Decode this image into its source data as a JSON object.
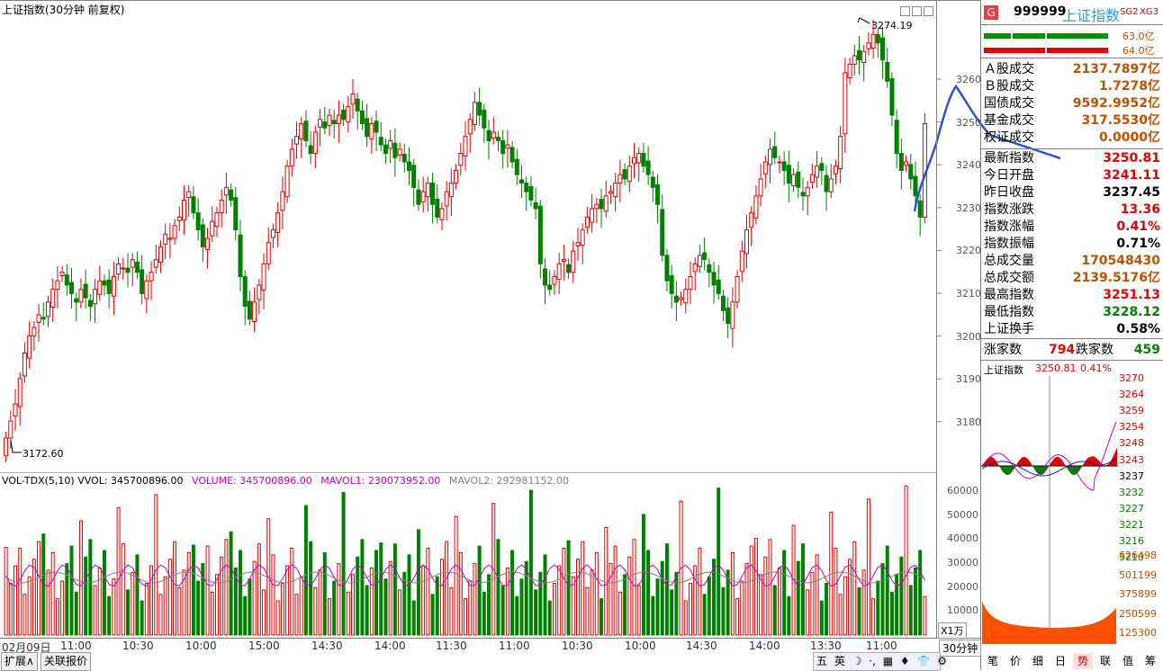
{
  "chart_title": "上证指数(30分钟 前复权)",
  "price_axis": [
    "3260",
    "3250",
    "3240",
    "3230",
    "3220",
    "3210",
    "3200",
    "3190",
    "3180"
  ],
  "high_label": "3274.19",
  "low_label": "3172.60",
  "vol_header": {
    "name": "VOL-TDX(5,10)",
    "vvol": "VVOL: 345700896.00",
    "volume": "VOLUME: 345700896.00",
    "mavol1": "MAVOL1: 230073952.00",
    "mavol2": "MAVOL2: 292981152.00"
  },
  "vol_axis": [
    "60000",
    "50000",
    "40000",
    "30000",
    "20000",
    "10000"
  ],
  "vol_unit": "X1万",
  "x_labels": [
    "02月09日",
    "11:00",
    "10:30",
    "10:00",
    "15:00",
    "14:30",
    "14:00",
    "11:30",
    "11:00",
    "10:30",
    "10:00",
    "14:30",
    "14:00",
    "13:30",
    "11:00"
  ],
  "period_label": "30分钟",
  "bottom_tabs": [
    "扩展∧",
    "关联报价"
  ],
  "taskbar_icons": [
    "五",
    "英",
    "☽",
    "·,",
    "▦",
    "♦",
    "👕",
    "⚙"
  ],
  "quote": {
    "logo": "G",
    "code": "999999",
    "name": "上证指数",
    "tag1": "SG2",
    "tag2": "XG3",
    "bar1": "63.0亿",
    "bar2": "64.0亿",
    "rows": [
      {
        "k": "Ａ股成交",
        "v": "2137.7897亿",
        "c": "brown"
      },
      {
        "k": "Ｂ股成交",
        "v": "1.7278亿",
        "c": "brown"
      },
      {
        "k": "国债成交",
        "v": "9592.9952亿",
        "c": "brown"
      },
      {
        "k": "基金成交",
        "v": "317.5530亿",
        "c": "brown"
      },
      {
        "k": "权证成交",
        "v": "0.0000亿",
        "c": "brown"
      },
      {
        "k": "最新指数",
        "v": "3250.81",
        "c": "red"
      },
      {
        "k": "今日开盘",
        "v": "3241.11",
        "c": "red"
      },
      {
        "k": "昨日收盘",
        "v": "3237.45",
        "c": "black"
      },
      {
        "k": "指数涨跌",
        "v": "13.36",
        "c": "red"
      },
      {
        "k": "指数涨幅",
        "v": "0.41%",
        "c": "red"
      },
      {
        "k": "指数振幅",
        "v": "0.71%",
        "c": "black"
      },
      {
        "k": "总成交量",
        "v": "170548430",
        "c": "brown"
      },
      {
        "k": "总成交额",
        "v": "2139.5176亿",
        "c": "brown"
      },
      {
        "k": "最高指数",
        "v": "3251.13",
        "c": "red"
      },
      {
        "k": "最低指数",
        "v": "3228.12",
        "c": "green"
      },
      {
        "k": "上证换手",
        "v": "0.58%",
        "c": "black"
      }
    ],
    "up_label": "涨家数",
    "up_count": "794",
    "down_label": "跌家数",
    "down_count": "459"
  },
  "mini_chart": {
    "title": "上证指数",
    "last": "3250.81",
    "pct": "0.41%",
    "price_ticks": [
      {
        "v": "3270",
        "c": "red"
      },
      {
        "v": "3264",
        "c": "red"
      },
      {
        "v": "3259",
        "c": "red"
      },
      {
        "v": "3254",
        "c": "red"
      },
      {
        "v": "3248",
        "c": "red"
      },
      {
        "v": "3243",
        "c": "red"
      },
      {
        "v": "3237",
        "c": "black"
      },
      {
        "v": "3232",
        "c": "green"
      },
      {
        "v": "3227",
        "c": "green"
      },
      {
        "v": "3221",
        "c": "green"
      },
      {
        "v": "3216",
        "c": "green"
      },
      {
        "v": "3210",
        "c": "green"
      }
    ],
    "vol_ticks": [
      "626498",
      "501199",
      "375899",
      "250599",
      "125300"
    ]
  },
  "side_tabs": [
    "笔",
    "价",
    "细",
    "日",
    "势",
    "联",
    "值",
    "筹"
  ],
  "chart_data": {
    "type": "candlestick",
    "title": "上证指数(30分钟 前复权)",
    "y_range": [
      3170,
      3278
    ],
    "max_high": 3274.19,
    "min_low": 3172.6,
    "closes": [
      3177,
      3181,
      3185,
      3191,
      3197,
      3201,
      3203,
      3206,
      3205,
      3209,
      3212,
      3214,
      3216,
      3213,
      3211,
      3209,
      3212,
      3210,
      3208,
      3212,
      3214,
      3213,
      3211,
      3215,
      3218,
      3217,
      3216,
      3219,
      3216,
      3211,
      3214,
      3216,
      3219,
      3222,
      3225,
      3224,
      3227,
      3229,
      3233,
      3235,
      3230,
      3226,
      3222,
      3224,
      3228,
      3230,
      3233,
      3236,
      3233,
      3226,
      3215,
      3208,
      3205,
      3209,
      3213,
      3218,
      3223,
      3226,
      3230,
      3235,
      3241,
      3245,
      3248,
      3251,
      3247,
      3244,
      3249,
      3252,
      3250,
      3253,
      3251,
      3253,
      3252,
      3255,
      3258,
      3254,
      3251,
      3248,
      3251,
      3249,
      3246,
      3244,
      3247,
      3243,
      3245,
      3242,
      3240,
      3236,
      3232,
      3235,
      3237,
      3232,
      3229,
      3231,
      3235,
      3237,
      3240,
      3244,
      3248,
      3252,
      3256,
      3253,
      3250,
      3247,
      3249,
      3247,
      3244,
      3246,
      3242,
      3239,
      3237,
      3235,
      3233,
      3231,
      3218,
      3213,
      3212,
      3215,
      3218,
      3219,
      3216,
      3221,
      3223,
      3226,
      3229,
      3231,
      3232,
      3231,
      3234,
      3235,
      3237,
      3239,
      3238,
      3241,
      3243,
      3244,
      3241,
      3239,
      3236,
      3232,
      3220,
      3214,
      3211,
      3209,
      3210,
      3212,
      3215,
      3218,
      3220,
      3219,
      3216,
      3213,
      3211,
      3207,
      3204,
      3209,
      3215,
      3221,
      3226,
      3230,
      3234,
      3238,
      3242,
      3245,
      3243,
      3242,
      3240,
      3237,
      3239,
      3236,
      3234,
      3236,
      3239,
      3241,
      3240,
      3235,
      3238,
      3241,
      3248,
      3263,
      3265,
      3267,
      3266,
      3268,
      3270,
      3272,
      3270,
      3266,
      3261,
      3253,
      3244,
      3240,
      3242,
      3238,
      3234,
      3229,
      3251
    ]
  }
}
